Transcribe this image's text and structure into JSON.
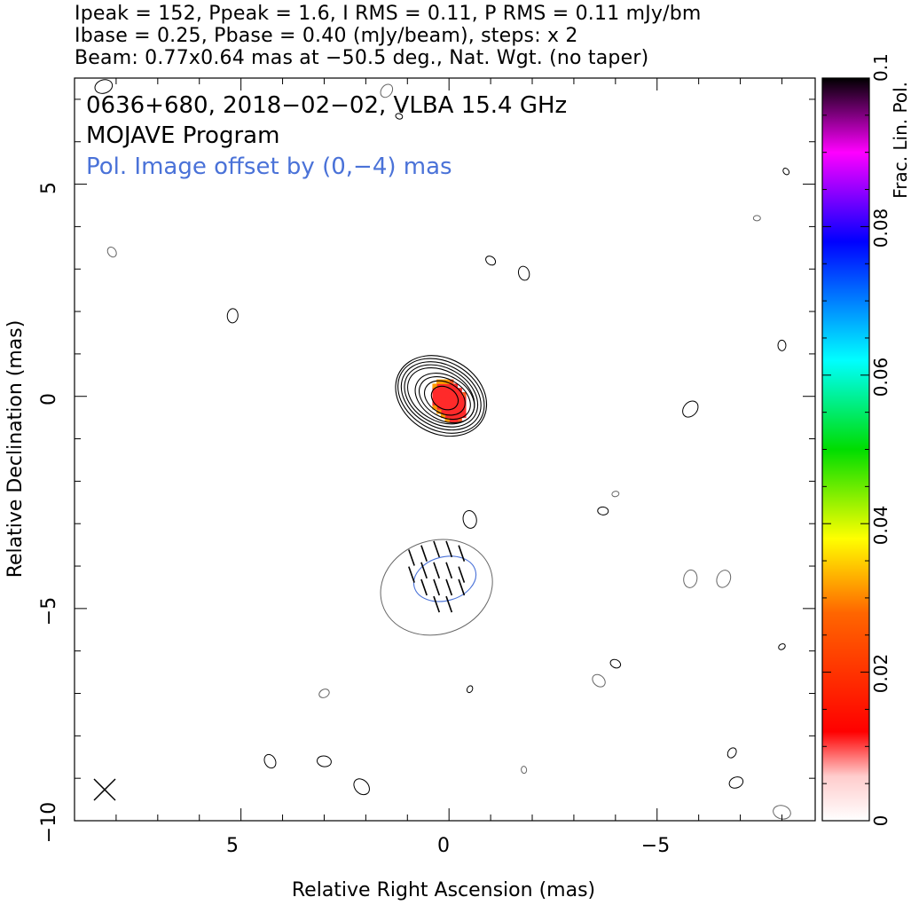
{
  "header": {
    "line1": "Ipeak = 152, Ppeak = 1.6, I RMS = 0.11, P RMS = 0.11 mJy/bm",
    "line2": "Ibase = 0.25, Pbase = 0.40 (mJy/beam), steps: x 2",
    "line3": "Beam: 0.77x0.64 mas at −50.5 deg., Nat. Wgt. (no taper)"
  },
  "chart_data": {
    "type": "heatmap",
    "annotations": {
      "source": "0636+680, 2018−02−02, VLBA 15.4 GHz",
      "program": "MOJAVE Program",
      "offset_note": "Pol. Image offset by (0,−4) mas"
    },
    "xlabel": "Relative Right Ascension (mas)",
    "ylabel": "Relative Declination (mas)",
    "xlim": [
      9,
      -8.8
    ],
    "ylim": [
      -10,
      7.5
    ],
    "x_ticks": [
      5,
      0,
      -5
    ],
    "x_tick_labels": [
      "5",
      "0",
      "−5"
    ],
    "y_ticks": [
      5,
      0,
      -5,
      -10
    ],
    "y_tick_labels": [
      "5",
      "0",
      "−5",
      "−10"
    ],
    "colorbar": {
      "label": "Frac. Lin. Pol.",
      "range": [
        0,
        0.1
      ],
      "ticks": [
        0,
        0.02,
        0.04,
        0.06,
        0.08,
        0.1
      ],
      "tick_labels": [
        "0",
        "0.02",
        "0.04",
        "0.06",
        "0.08",
        "0.1"
      ],
      "stops": [
        "#ffffff",
        "#ff0000",
        "#ff9900",
        "#ffff00",
        "#00dd00",
        "#00ffff",
        "#0000ff",
        "#ff00ff",
        "#000000"
      ]
    },
    "stokes_i_contours": {
      "center": [
        0,
        0
      ],
      "peak_mjy": 152,
      "base_mjy": 0.25,
      "step_factor": 2,
      "position_angle_deg": 58,
      "ellipses": [
        {
          "a": 1.15,
          "b": 0.9
        },
        {
          "a": 1.1,
          "b": 0.82
        },
        {
          "a": 1.02,
          "b": 0.74
        },
        {
          "a": 0.94,
          "b": 0.67
        },
        {
          "a": 0.86,
          "b": 0.6
        },
        {
          "a": 0.76,
          "b": 0.53
        },
        {
          "a": 0.66,
          "b": 0.45
        },
        {
          "a": 0.52,
          "b": 0.37
        },
        {
          "a": 0.34,
          "b": 0.26
        }
      ]
    },
    "frac_pol_pixels": {
      "center": [
        0,
        -0.1
      ],
      "a": 0.55,
      "b": 0.4,
      "fraction": 0.012,
      "edge_fraction": 0.03
    },
    "polarization_image": {
      "offset": [
        0,
        -4
      ],
      "outer_contour": {
        "center": [
          0.3,
          -4.5
        ],
        "a": 1.75,
        "b": 1.25
      },
      "blue_contour": {
        "center": [
          0.1,
          -4.3
        ],
        "a": 0.95,
        "b": 0.7
      },
      "evpa_ticks": [
        [
          0.9,
          -3.8
        ],
        [
          0.6,
          -3.7
        ],
        [
          0.3,
          -3.6
        ],
        [
          0.0,
          -3.6
        ],
        [
          -0.3,
          -3.7
        ],
        [
          0.9,
          -4.2
        ],
        [
          0.6,
          -4.1
        ],
        [
          0.3,
          -4.1
        ],
        [
          0.0,
          -4.1
        ],
        [
          -0.3,
          -4.2
        ],
        [
          0.6,
          -4.5
        ],
        [
          0.3,
          -4.5
        ],
        [
          0.0,
          -4.5
        ],
        [
          -0.3,
          -4.5
        ],
        [
          0.3,
          -4.9
        ],
        [
          0.0,
          -4.9
        ]
      ]
    },
    "noise_contours": [
      [
        -7.4,
        4.2
      ],
      [
        -1.0,
        3.2
      ],
      [
        -1.8,
        2.9
      ],
      [
        -6.6,
        -4.3
      ],
      [
        -8.0,
        -5.9
      ],
      [
        -3.7,
        -2.7
      ],
      [
        -3.6,
        -6.7
      ],
      [
        -0.5,
        -2.9
      ],
      [
        -0.5,
        -6.9
      ],
      [
        3.0,
        -7.0
      ],
      [
        3.0,
        -8.6
      ],
      [
        2.1,
        -9.2
      ],
      [
        -1.8,
        -8.8
      ],
      [
        -6.8,
        -8.4
      ],
      [
        -6.9,
        -9.1
      ],
      [
        -8.0,
        -9.8
      ],
      [
        -8.1,
        5.3
      ],
      [
        -8.0,
        1.2
      ],
      [
        1.5,
        7.2
      ],
      [
        8.3,
        7.3
      ],
      [
        1.2,
        6.6
      ],
      [
        8.1,
        3.4
      ],
      [
        5.2,
        1.9
      ],
      [
        -5.8,
        -0.3
      ],
      [
        -4.0,
        -2.3
      ],
      [
        -4.0,
        -6.3
      ],
      [
        4.3,
        -8.6
      ],
      [
        -5.8,
        -4.3
      ]
    ],
    "beam": {
      "major": 0.77,
      "minor": 0.64,
      "pa_deg": -50.5
    }
  }
}
